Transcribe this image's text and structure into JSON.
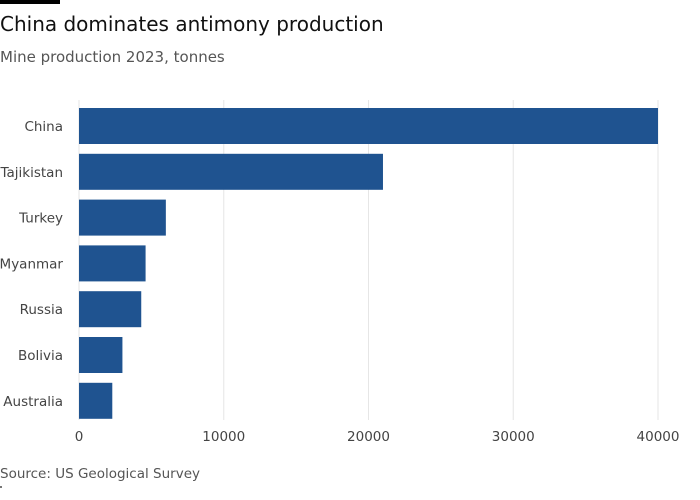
{
  "title": "China dominates antimony production",
  "subtitle": "Mine production 2023, tonnes",
  "source": "Source: US Geological Survey",
  "colors": {
    "bar": "#1f5390",
    "grid": "#e6e6e6",
    "text": "#444444"
  },
  "chart_data": {
    "type": "bar",
    "orientation": "horizontal",
    "title": "China dominates antimony production",
    "subtitle": "Mine production 2023, tonnes",
    "categories": [
      "China",
      "Tajikistan",
      "Turkey",
      "Myanmar",
      "Russia",
      "Bolivia",
      "Australia"
    ],
    "values": [
      40000,
      21000,
      6000,
      4600,
      4300,
      3000,
      2300
    ],
    "xlim": [
      0,
      40000
    ],
    "xticks": [
      0,
      10000,
      20000,
      30000,
      40000
    ],
    "xtick_labels": [
      "0",
      "10000",
      "20000",
      "30000",
      "40000"
    ],
    "xlabel": "",
    "ylabel": "",
    "grid": "vertical",
    "legend": "none"
  }
}
